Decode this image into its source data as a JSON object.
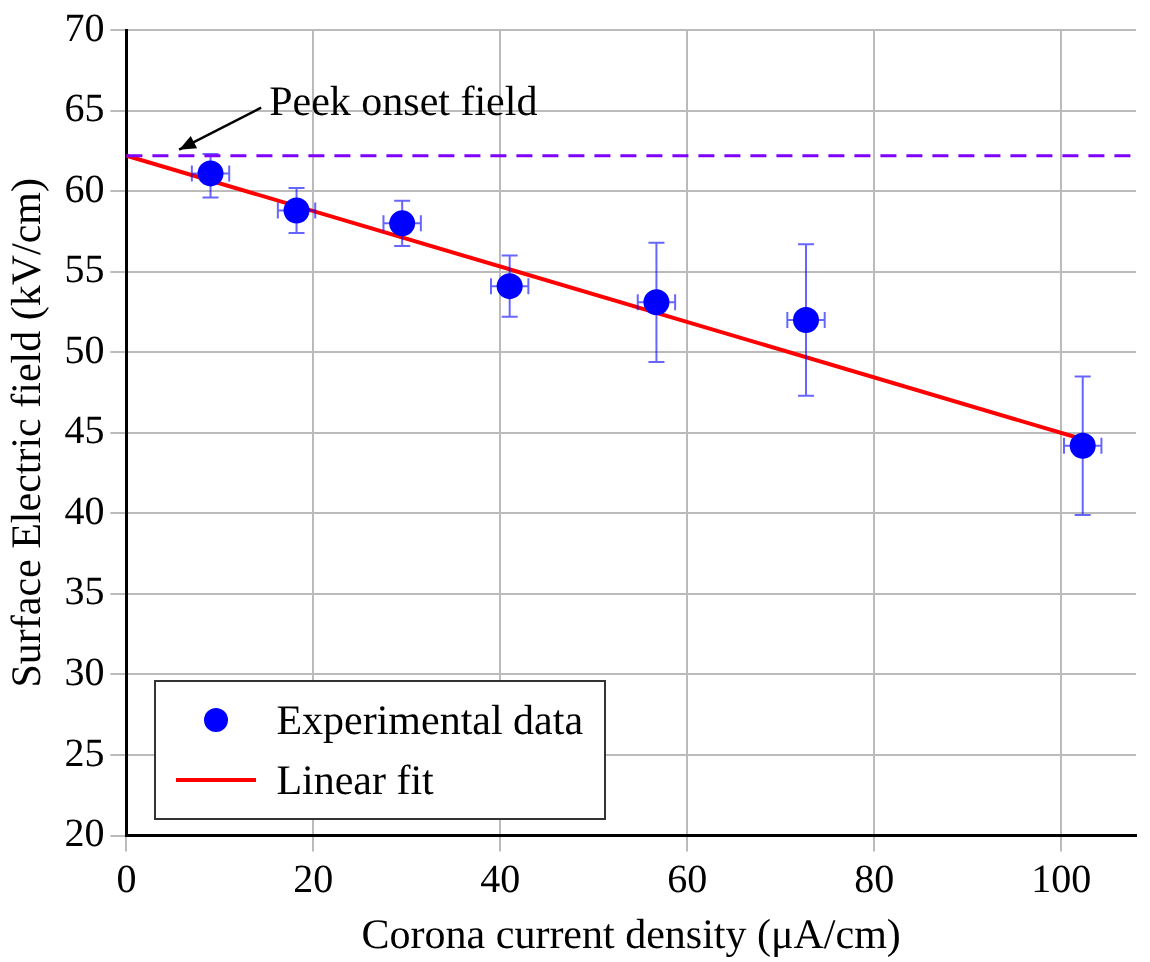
{
  "chart_data": {
    "type": "scatter",
    "xlabel": "Corona current density (μA/cm)",
    "ylabel": "Surface Electric field (kV/cm)",
    "xlim": [
      0,
      108
    ],
    "xticks": [
      0,
      20,
      40,
      60,
      80,
      100
    ],
    "ylim": [
      20,
      70
    ],
    "yticks": [
      20,
      25,
      30,
      35,
      40,
      45,
      50,
      55,
      60,
      65,
      70
    ],
    "grid": true,
    "legend": "bottom left",
    "marker": "circle",
    "series": [
      {
        "name": "Experimental data",
        "color": "#0000ff",
        "x": [
          9,
          18.2,
          29.5,
          41,
          56.7,
          72.7,
          102.3
        ],
        "values": [
          61.1,
          58.8,
          58.0,
          54.1,
          53.1,
          52.0,
          44.2
        ],
        "errors": [
          [
            59.6,
            62.3
          ],
          [
            57.4,
            60.2
          ],
          [
            56.6,
            59.4
          ],
          [
            52.2,
            56.0
          ],
          [
            49.4,
            56.8
          ],
          [
            47.3,
            56.7
          ],
          [
            39.9,
            48.5
          ]
        ],
        "xerrors": [
          2,
          2,
          2,
          2,
          2,
          2,
          2
        ]
      },
      {
        "name": "Linear fit",
        "type": "line",
        "color": "#ff0000",
        "x": [
          0,
          102.3
        ],
        "values": [
          62.2,
          44.6
        ],
        "marker": "none"
      }
    ],
    "ref_lines": [
      {
        "axis": "y",
        "value": 62.2,
        "color": "#8000ff",
        "line_style": "dashed"
      }
    ],
    "annotations": [
      {
        "text": "Peek onset field",
        "x": 5,
        "y": 62.2
      }
    ]
  }
}
